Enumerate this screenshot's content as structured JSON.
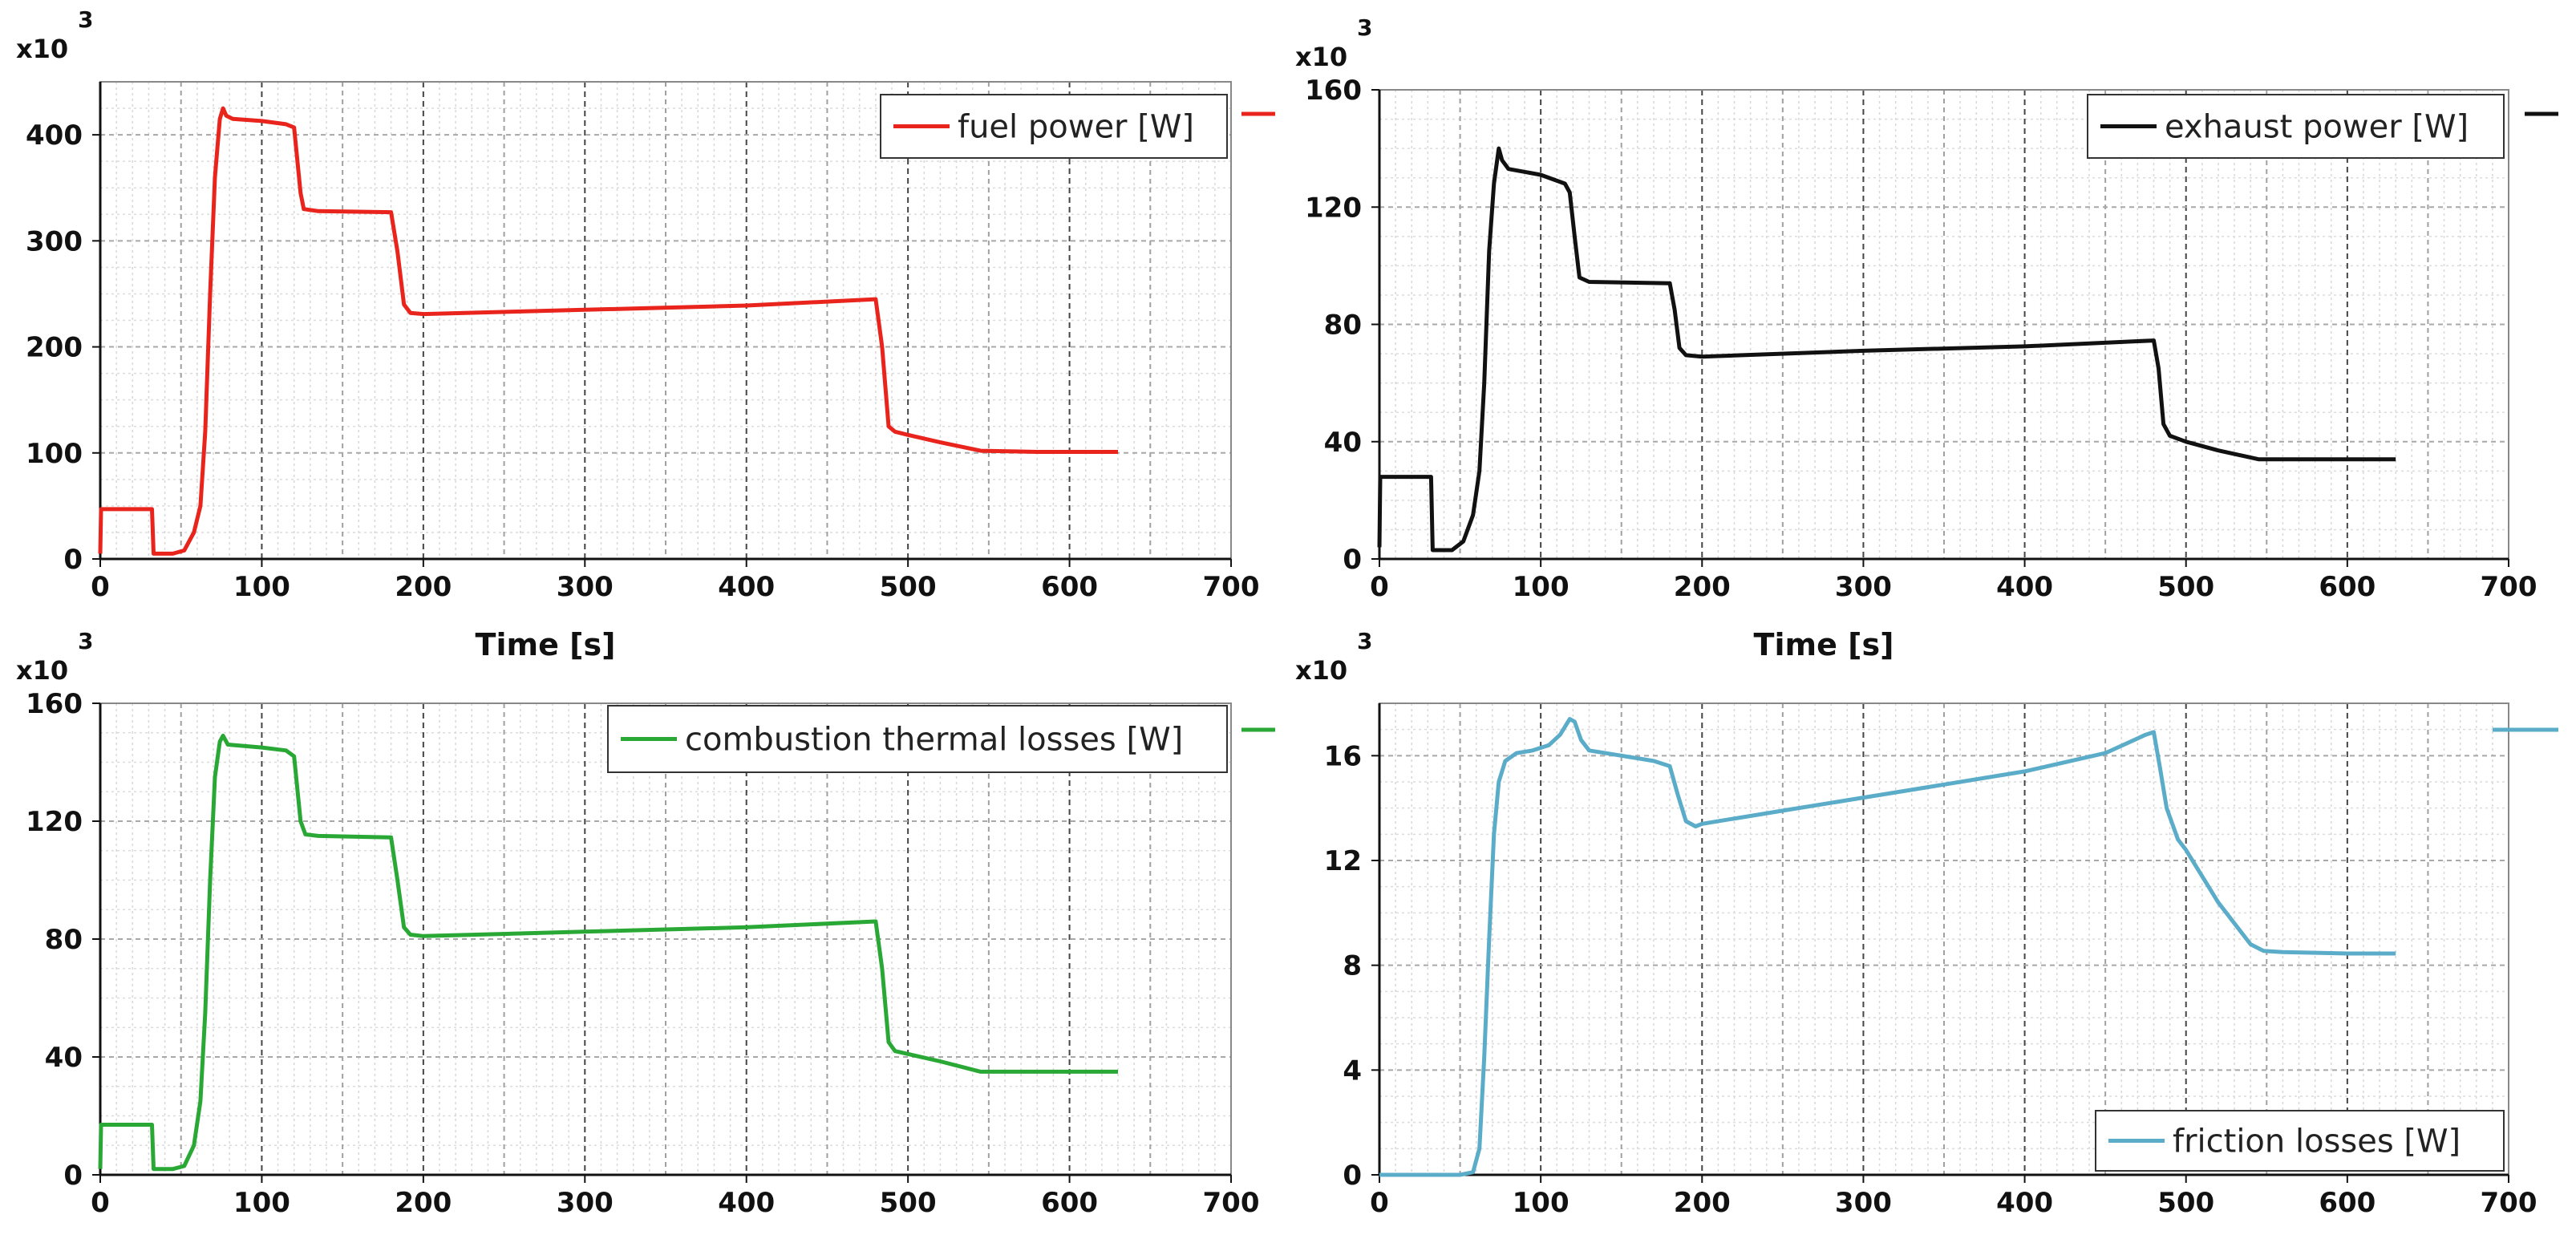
{
  "chart_data": [
    {
      "type": "line",
      "name": "fuel-power",
      "multiplier_label": "x10",
      "multiplier_exp": "3",
      "xlabel": "Time [s]",
      "xlim": [
        0,
        700
      ],
      "ylim": [
        0,
        450
      ],
      "x_ticks": [
        0,
        100,
        200,
        300,
        400,
        500,
        600,
        700
      ],
      "y_ticks": [
        0,
        100,
        200,
        300,
        400
      ],
      "legend": "fuel power [W]",
      "legend_position": "top-right",
      "color": "#e8241c",
      "series": [
        {
          "name": "fuel power [W]",
          "points": [
            [
              0,
              5
            ],
            [
              0.5,
              47
            ],
            [
              32,
              47
            ],
            [
              33,
              5
            ],
            [
              45,
              5
            ],
            [
              52,
              8
            ],
            [
              58,
              25
            ],
            [
              62,
              50
            ],
            [
              65,
              120
            ],
            [
              68,
              250
            ],
            [
              71,
              360
            ],
            [
              74,
              415
            ],
            [
              76,
              425
            ],
            [
              78,
              418
            ],
            [
              82,
              415
            ],
            [
              100,
              413
            ],
            [
              115,
              410
            ],
            [
              120,
              407
            ],
            [
              124,
              345
            ],
            [
              126,
              330
            ],
            [
              135,
              328
            ],
            [
              180,
              327
            ],
            [
              184,
              290
            ],
            [
              188,
              240
            ],
            [
              192,
              232
            ],
            [
              200,
              231
            ],
            [
              300,
              235
            ],
            [
              400,
              239
            ],
            [
              480,
              245
            ],
            [
              484,
              200
            ],
            [
              488,
              125
            ],
            [
              492,
              120
            ],
            [
              500,
              117
            ],
            [
              520,
              110
            ],
            [
              545,
              102
            ],
            [
              580,
              101
            ],
            [
              630,
              101
            ]
          ]
        }
      ]
    },
    {
      "type": "line",
      "name": "exhaust-power",
      "multiplier_label": "x10",
      "multiplier_exp": "3",
      "xlabel": "Time [s]",
      "xlim": [
        0,
        700
      ],
      "ylim": [
        0,
        160
      ],
      "x_ticks": [
        0,
        100,
        200,
        300,
        400,
        500,
        600,
        700
      ],
      "y_ticks": [
        0,
        40,
        80,
        120,
        160
      ],
      "legend": "exhaust power [W]",
      "legend_position": "top-right",
      "color": "#111111",
      "series": [
        {
          "name": "exhaust power [W]",
          "points": [
            [
              0,
              4
            ],
            [
              0.5,
              28
            ],
            [
              32,
              28
            ],
            [
              33,
              3
            ],
            [
              45,
              3
            ],
            [
              52,
              6
            ],
            [
              58,
              15
            ],
            [
              62,
              30
            ],
            [
              65,
              60
            ],
            [
              68,
              105
            ],
            [
              71,
              128
            ],
            [
              74,
              140
            ],
            [
              76,
              136
            ],
            [
              80,
              133
            ],
            [
              100,
              131
            ],
            [
              115,
              128
            ],
            [
              118,
              125
            ],
            [
              121,
              110
            ],
            [
              124,
              96
            ],
            [
              130,
              94.5
            ],
            [
              180,
              94
            ],
            [
              183,
              85
            ],
            [
              186,
              72
            ],
            [
              190,
              69.5
            ],
            [
              200,
              69
            ],
            [
              300,
              71
            ],
            [
              400,
              72.5
            ],
            [
              480,
              74.5
            ],
            [
              483,
              65
            ],
            [
              486,
              46
            ],
            [
              490,
              42
            ],
            [
              500,
              40
            ],
            [
              520,
              37
            ],
            [
              545,
              34
            ],
            [
              580,
              34
            ],
            [
              630,
              34
            ]
          ]
        }
      ]
    },
    {
      "type": "line",
      "name": "combustion-thermal-losses",
      "multiplier_label": "x10",
      "multiplier_exp": "3",
      "xlabel": "",
      "xlim": [
        0,
        700
      ],
      "ylim": [
        0,
        160
      ],
      "x_ticks": [
        0,
        100,
        200,
        300,
        400,
        500,
        600,
        700
      ],
      "y_ticks": [
        0,
        40,
        80,
        120,
        160
      ],
      "legend": "combustion thermal losses [W]",
      "legend_position": "top-right",
      "color": "#2aa836",
      "series": [
        {
          "name": "combustion thermal losses [W]",
          "points": [
            [
              0,
              2
            ],
            [
              0.5,
              17
            ],
            [
              32,
              17
            ],
            [
              33,
              2
            ],
            [
              45,
              2
            ],
            [
              52,
              3
            ],
            [
              58,
              10
            ],
            [
              62,
              25
            ],
            [
              65,
              55
            ],
            [
              68,
              100
            ],
            [
              71,
              135
            ],
            [
              74,
              147
            ],
            [
              76,
              149
            ],
            [
              79,
              146
            ],
            [
              100,
              145
            ],
            [
              115,
              144
            ],
            [
              120,
              142
            ],
            [
              124,
              120
            ],
            [
              127,
              115.5
            ],
            [
              135,
              115
            ],
            [
              180,
              114.5
            ],
            [
              184,
              100
            ],
            [
              188,
              84
            ],
            [
              192,
              81.5
            ],
            [
              200,
              81
            ],
            [
              300,
              82.5
            ],
            [
              400,
              84
            ],
            [
              480,
              86
            ],
            [
              484,
              70
            ],
            [
              488,
              45
            ],
            [
              492,
              42
            ],
            [
              500,
              41
            ],
            [
              520,
              38.5
            ],
            [
              545,
              35
            ],
            [
              580,
              35
            ],
            [
              630,
              35
            ]
          ]
        }
      ]
    },
    {
      "type": "line",
      "name": "friction-losses",
      "multiplier_label": "x10",
      "multiplier_exp": "3",
      "xlabel": "",
      "xlim": [
        0,
        700
      ],
      "ylim": [
        0,
        18
      ],
      "x_ticks": [
        0,
        100,
        200,
        300,
        400,
        500,
        600,
        700
      ],
      "y_ticks": [
        0,
        4,
        8,
        12,
        16
      ],
      "legend": "friction losses  [W]",
      "legend_position": "bottom-right",
      "color": "#5aacc8",
      "series": [
        {
          "name": "friction losses  [W]",
          "points": [
            [
              0,
              0
            ],
            [
              50,
              0
            ],
            [
              58,
              0.1
            ],
            [
              62,
              1
            ],
            [
              65,
              4.5
            ],
            [
              68,
              9
            ],
            [
              71,
              13
            ],
            [
              74,
              15
            ],
            [
              78,
              15.8
            ],
            [
              85,
              16.1
            ],
            [
              95,
              16.2
            ],
            [
              105,
              16.4
            ],
            [
              112,
              16.8
            ],
            [
              118,
              17.4
            ],
            [
              121,
              17.3
            ],
            [
              125,
              16.6
            ],
            [
              130,
              16.2
            ],
            [
              150,
              16
            ],
            [
              170,
              15.8
            ],
            [
              180,
              15.6
            ],
            [
              185,
              14.5
            ],
            [
              190,
              13.5
            ],
            [
              196,
              13.3
            ],
            [
              200,
              13.4
            ],
            [
              250,
              13.9
            ],
            [
              300,
              14.4
            ],
            [
              350,
              14.9
            ],
            [
              400,
              15.4
            ],
            [
              450,
              16.1
            ],
            [
              475,
              16.8
            ],
            [
              480,
              16.9
            ],
            [
              484,
              15.5
            ],
            [
              488,
              14
            ],
            [
              495,
              12.8
            ],
            [
              500,
              12.4
            ],
            [
              520,
              10.4
            ],
            [
              540,
              8.8
            ],
            [
              548,
              8.55
            ],
            [
              560,
              8.5
            ],
            [
              600,
              8.45
            ],
            [
              630,
              8.45
            ]
          ]
        }
      ]
    }
  ]
}
